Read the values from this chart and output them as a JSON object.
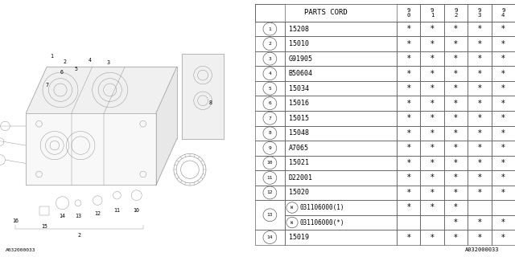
{
  "bg_color": "#ffffff",
  "col_headers": [
    "9\n0",
    "9\n1",
    "9\n2",
    "9\n3",
    "9\n4"
  ],
  "rows": [
    {
      "num": "1",
      "code": "15208",
      "stars": [
        true,
        true,
        true,
        true,
        true
      ],
      "sub": null
    },
    {
      "num": "2",
      "code": "15010",
      "stars": [
        true,
        true,
        true,
        true,
        true
      ],
      "sub": null
    },
    {
      "num": "3",
      "code": "G91905",
      "stars": [
        true,
        true,
        true,
        true,
        true
      ],
      "sub": null
    },
    {
      "num": "4",
      "code": "B50604",
      "stars": [
        true,
        true,
        true,
        true,
        true
      ],
      "sub": null
    },
    {
      "num": "5",
      "code": "15034",
      "stars": [
        true,
        true,
        true,
        true,
        true
      ],
      "sub": null
    },
    {
      "num": "6",
      "code": "15016",
      "stars": [
        true,
        true,
        true,
        true,
        true
      ],
      "sub": null
    },
    {
      "num": "7",
      "code": "15015",
      "stars": [
        true,
        true,
        true,
        true,
        true
      ],
      "sub": null
    },
    {
      "num": "8",
      "code": "15048",
      "stars": [
        true,
        true,
        true,
        true,
        true
      ],
      "sub": null
    },
    {
      "num": "9",
      "code": "A7065",
      "stars": [
        true,
        true,
        true,
        true,
        true
      ],
      "sub": null
    },
    {
      "num": "10",
      "code": "15021",
      "stars": [
        true,
        true,
        true,
        true,
        true
      ],
      "sub": null
    },
    {
      "num": "11",
      "code": "D22001",
      "stars": [
        true,
        true,
        true,
        true,
        true
      ],
      "sub": null
    },
    {
      "num": "12",
      "code": "15020",
      "stars": [
        true,
        true,
        true,
        true,
        true
      ],
      "sub": null
    },
    {
      "num": "13",
      "code": null,
      "stars": null,
      "sub": [
        {
          "label": "W",
          "text": "031106000(1)",
          "stars": [
            true,
            true,
            true,
            false,
            false
          ]
        },
        {
          "label": "W",
          "text": "031106000(*)",
          "stars": [
            false,
            false,
            true,
            true,
            true
          ]
        }
      ]
    },
    {
      "num": "14",
      "code": "15019",
      "stars": [
        true,
        true,
        true,
        true,
        true
      ],
      "sub": null
    }
  ],
  "footer": "A032000033",
  "line_color": "#606060",
  "text_color": "#000000",
  "draw_line_color": "#888888",
  "font_size": 6.0,
  "header_font_size": 6.5,
  "star_font_size": 7.0,
  "num_font_size": 5.0
}
